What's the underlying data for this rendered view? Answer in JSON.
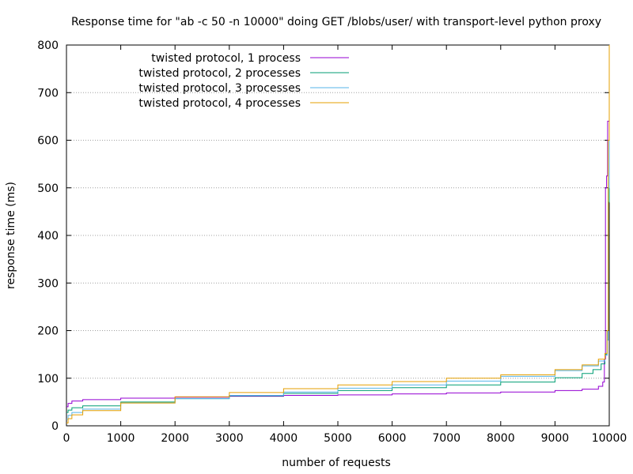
{
  "chart_data": {
    "type": "line",
    "title": "Response time for \"ab -c 50 -n 10000\" doing GET /blobs/user/ with transport-level python proxy",
    "xlabel": "number of requests",
    "ylabel": "response time (ms)",
    "xlim": [
      0,
      10000
    ],
    "ylim": [
      0,
      800
    ],
    "x_ticks": [
      "0",
      "1000",
      "2000",
      "3000",
      "4000",
      "5000",
      "6000",
      "7000",
      "8000",
      "9000",
      "10000"
    ],
    "y_ticks": [
      "0",
      "100",
      "200",
      "300",
      "400",
      "500",
      "600",
      "700",
      "800"
    ],
    "grid": "horizontal dotted",
    "legend_position": "top-left",
    "series": [
      {
        "name": "twisted protocol, 1 process",
        "color": "#9400d3",
        "x": [
          0,
          30,
          100,
          300,
          1000,
          2000,
          3000,
          4000,
          5000,
          6000,
          7000,
          8000,
          9000,
          9500,
          9800,
          9880,
          9910,
          9930,
          9950,
          9970,
          10000
        ],
        "y": [
          40,
          47,
          52,
          55,
          58,
          60,
          62,
          64,
          65,
          67,
          69,
          71,
          74,
          77,
          83,
          92,
          140,
          500,
          525,
          640,
          660
        ]
      },
      {
        "name": "twisted protocol, 2 processes",
        "color": "#009e73",
        "x": [
          0,
          30,
          100,
          300,
          1000,
          2000,
          3000,
          4000,
          5000,
          6000,
          7000,
          8000,
          9000,
          9500,
          9700,
          9850,
          9920,
          9960,
          9980,
          10000
        ],
        "y": [
          28,
          33,
          38,
          42,
          50,
          57,
          63,
          68,
          74,
          80,
          86,
          92,
          101,
          110,
          118,
          130,
          150,
          200,
          470,
          780
        ]
      },
      {
        "name": "twisted protocol, 3 processes",
        "color": "#56b4e9",
        "x": [
          0,
          30,
          100,
          300,
          1000,
          2000,
          3000,
          4000,
          5000,
          6000,
          7000,
          8000,
          9000,
          9500,
          9800,
          9920,
          9960,
          9980,
          10000
        ],
        "y": [
          14,
          22,
          28,
          35,
          48,
          57,
          64,
          71,
          79,
          86,
          94,
          104,
          116,
          126,
          136,
          148,
          180,
          500,
          790
        ]
      },
      {
        "name": "twisted protocol, 4 processes",
        "color": "#e69f00",
        "x": [
          0,
          30,
          100,
          300,
          1000,
          2000,
          3000,
          4000,
          5000,
          6000,
          7000,
          8000,
          9000,
          9500,
          9800,
          9920,
          9960,
          9980,
          10000
        ],
        "y": [
          6,
          15,
          23,
          32,
          48,
          61,
          70,
          78,
          86,
          93,
          100,
          107,
          118,
          128,
          140,
          152,
          200,
          600,
          800
        ]
      }
    ]
  }
}
